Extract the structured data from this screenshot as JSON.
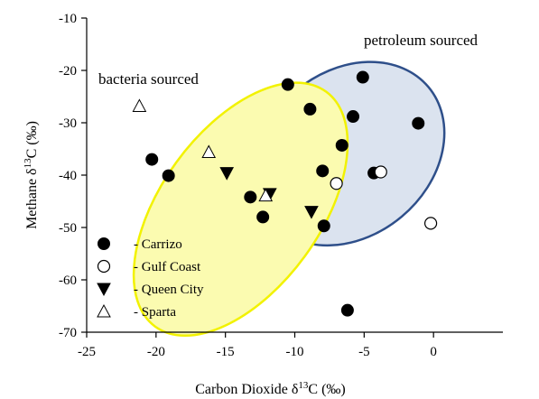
{
  "chart_data": {
    "type": "scatter",
    "xlabel": "Carbon Dioxide δ13C (‰)",
    "xlabel_parts": [
      "Carbon Dioxide δ",
      "13",
      "C (‰)"
    ],
    "ylabel": "Methane δ13C (‰)",
    "ylabel_parts": [
      "Methane δ",
      "13",
      "C (‰)"
    ],
    "xlim": [
      -25,
      5
    ],
    "ylim": [
      -70,
      -10
    ],
    "xticks": [
      -25,
      -20,
      -15,
      -10,
      -5,
      0
    ],
    "yticks": [
      -10,
      -20,
      -30,
      -40,
      -50,
      -60,
      -70
    ],
    "grid": false,
    "legend_position": "bottom-left",
    "regions": [
      {
        "label": "petroleum sourced",
        "fill": "#dbe3ef",
        "stroke": "#2e4f8a",
        "center": [
          -6.1,
          -35.9
        ],
        "radii": [
          7.48,
          15.7
        ],
        "angle_deg": -40
      },
      {
        "label": "bacteria sourced",
        "fill": "#fbfbb0",
        "stroke": "#f2f200",
        "center": [
          -13.9,
          -46.5
        ],
        "radii": [
          10.47,
          15.2
        ],
        "angle_deg": -54
      }
    ],
    "series": [
      {
        "name": "- Carrizo",
        "marker": "filled-circle",
        "color": "#000000",
        "points": [
          [
            -10.5,
            -22.7
          ],
          [
            -5.1,
            -21.3
          ],
          [
            -8.9,
            -27.4
          ],
          [
            -5.8,
            -28.8
          ],
          [
            -1.1,
            -30.1
          ],
          [
            -6.6,
            -34.3
          ],
          [
            -8.0,
            -39.2
          ],
          [
            -4.3,
            -39.6
          ],
          [
            -20.3,
            -37.0
          ],
          [
            -19.1,
            -40.1
          ],
          [
            -13.2,
            -44.2
          ],
          [
            -12.3,
            -48.0
          ],
          [
            -7.9,
            -49.7
          ],
          [
            -6.2,
            -65.8
          ]
        ]
      },
      {
        "name": "- Gulf Coast",
        "marker": "open-circle",
        "color": "#000000",
        "points": [
          [
            -7.0,
            -41.6
          ],
          [
            -3.8,
            -39.4
          ],
          [
            -0.2,
            -49.2
          ]
        ]
      },
      {
        "name": "- Queen City",
        "marker": "filled-triangle-down",
        "color": "#000000",
        "points": [
          [
            -14.9,
            -39.6
          ],
          [
            -11.8,
            -43.6
          ],
          [
            -8.8,
            -47.0
          ]
        ]
      },
      {
        "name": "- Sparta",
        "marker": "open-triangle-up",
        "color": "#000000",
        "points": [
          [
            -21.2,
            -26.8
          ],
          [
            -16.2,
            -35.6
          ],
          [
            -12.1,
            -43.9
          ]
        ]
      }
    ]
  }
}
